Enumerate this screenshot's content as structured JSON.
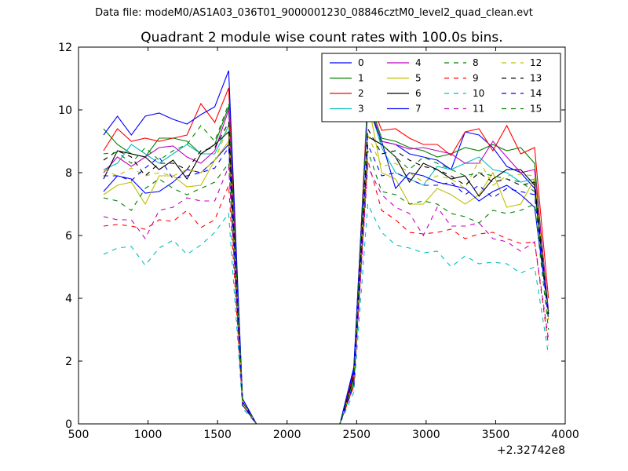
{
  "figure": {
    "suptitle": "Data file: modeM0/AS1A03_036T01_9000001230_08846cztM0_level2_quad_clean.evt"
  },
  "chart_data": {
    "type": "line",
    "title": "Quadrant 2 module wise count rates with 100.0s bins.",
    "xlabel": "",
    "ylabel": "",
    "x_offset_label": "+2.32742e8",
    "xlim": [
      500,
      4000
    ],
    "ylim": [
      0,
      12
    ],
    "xticks": [
      500,
      1000,
      1500,
      2000,
      2500,
      3000,
      3500,
      4000
    ],
    "yticks": [
      0,
      2,
      4,
      6,
      8,
      10,
      12
    ],
    "grid": false,
    "legend_position": "top-right",
    "legend_columns": 4,
    "x": [
      680,
      780,
      880,
      980,
      1080,
      1180,
      1280,
      1380,
      1480,
      1580,
      1680,
      1780,
      1880,
      1980,
      2080,
      2180,
      2280,
      2380,
      2480,
      2580,
      2680,
      2780,
      2880,
      2980,
      3080,
      3180,
      3280,
      3380,
      3480,
      3580,
      3680,
      3780,
      3880
    ],
    "series": [
      {
        "name": "0",
        "color": "#0000ff",
        "dash": "solid",
        "values": [
          7.4,
          7.9,
          7.8,
          7.35,
          7.4,
          7.7,
          8.1,
          8.0,
          8.4,
          8.9,
          0.8,
          0,
          0,
          0,
          0,
          0,
          0,
          0,
          1.7,
          10.2,
          9.0,
          8.9,
          8.6,
          8.5,
          8.4,
          8.1,
          9.3,
          9.2,
          8.8,
          8.2,
          8.0,
          7.5,
          3.4
        ]
      },
      {
        "name": "1",
        "color": "#008000",
        "dash": "solid",
        "values": [
          9.4,
          8.9,
          8.6,
          8.5,
          9.1,
          9.1,
          9.0,
          8.6,
          8.9,
          10.1,
          0.7,
          0,
          0,
          0,
          0,
          0,
          0,
          0,
          1.5,
          10.4,
          9.1,
          9.0,
          8.8,
          8.7,
          8.5,
          8.6,
          8.8,
          8.7,
          8.9,
          8.7,
          8.8,
          8.3,
          3.5
        ]
      },
      {
        "name": "2",
        "color": "#ff0000",
        "dash": "solid",
        "values": [
          8.7,
          9.4,
          9.0,
          9.1,
          9.0,
          9.1,
          9.2,
          10.2,
          9.6,
          10.7,
          0.7,
          0,
          0,
          0,
          0,
          0,
          0,
          0,
          1.6,
          10.5,
          9.35,
          9.4,
          9.1,
          8.9,
          8.9,
          8.55,
          9.3,
          9.4,
          8.7,
          9.5,
          8.6,
          8.8,
          4.0
        ]
      },
      {
        "name": "3",
        "color": "#00bfbf",
        "dash": "solid",
        "values": [
          8.1,
          8.3,
          8.9,
          8.6,
          8.3,
          8.6,
          8.9,
          8.6,
          8.6,
          9.5,
          0.7,
          0,
          0,
          0,
          0,
          0,
          0,
          0,
          1.4,
          10.3,
          8.8,
          8.0,
          7.8,
          7.6,
          8.2,
          8.1,
          8.3,
          8.5,
          8.1,
          8.0,
          7.7,
          7.8,
          3.4
        ]
      },
      {
        "name": "4",
        "color": "#bf00bf",
        "dash": "solid",
        "values": [
          8.0,
          8.5,
          8.2,
          8.5,
          8.8,
          8.85,
          8.5,
          8.3,
          8.7,
          10.0,
          0.7,
          0,
          0,
          0,
          0,
          0,
          0,
          0,
          1.5,
          10.3,
          9.0,
          8.9,
          8.75,
          8.8,
          8.7,
          8.6,
          8.3,
          8.3,
          9.0,
          8.5,
          8.0,
          8.1,
          3.6
        ]
      },
      {
        "name": "5",
        "color": "#bfbf00",
        "dash": "solid",
        "values": [
          7.3,
          7.6,
          7.7,
          7.0,
          7.9,
          7.9,
          7.55,
          7.6,
          8.4,
          9.0,
          0.6,
          0,
          0,
          0,
          0,
          0,
          0,
          0,
          1.3,
          10.3,
          8.0,
          7.8,
          7.0,
          7.0,
          7.5,
          7.3,
          7.0,
          7.3,
          8.0,
          6.9,
          7.0,
          7.8,
          3.3
        ]
      },
      {
        "name": "6",
        "color": "#000000",
        "dash": "solid",
        "values": [
          7.8,
          8.7,
          8.6,
          8.5,
          8.1,
          8.4,
          7.8,
          8.6,
          8.9,
          9.3,
          0.7,
          0,
          0,
          0,
          0,
          0,
          0,
          0,
          1.5,
          9.15,
          8.9,
          8.5,
          7.7,
          8.3,
          8.1,
          7.8,
          7.9,
          7.25,
          7.8,
          8.1,
          8.1,
          7.6,
          3.5
        ]
      },
      {
        "name": "7",
        "color": "#0000ff",
        "dash": "solid",
        "values": [
          9.2,
          9.8,
          9.2,
          9.8,
          9.9,
          9.7,
          9.55,
          9.85,
          10.1,
          11.25,
          0.8,
          0,
          0,
          0,
          0,
          0,
          0,
          0,
          1.8,
          10.1,
          9.0,
          7.5,
          8.0,
          7.9,
          7.7,
          7.6,
          7.5,
          7.1,
          7.4,
          7.6,
          7.3,
          6.9,
          3.5
        ]
      },
      {
        "name": "8",
        "color": "#008000",
        "dash": "dashed",
        "values": [
          7.2,
          7.1,
          6.8,
          7.5,
          7.8,
          7.5,
          7.3,
          7.5,
          7.7,
          8.3,
          0.6,
          0,
          0,
          0,
          0,
          0,
          0,
          0,
          1.3,
          8.7,
          7.4,
          7.3,
          7.0,
          7.1,
          7.0,
          6.7,
          6.6,
          6.4,
          6.8,
          6.7,
          6.8,
          7.0,
          3.0
        ]
      },
      {
        "name": "9",
        "color": "#ff0000",
        "dash": "dashed",
        "values": [
          6.3,
          6.35,
          6.3,
          6.2,
          6.5,
          6.45,
          6.8,
          6.25,
          6.5,
          7.6,
          0.6,
          0,
          0,
          0,
          0,
          0,
          0,
          0,
          1.2,
          8.4,
          6.8,
          6.5,
          6.1,
          6.05,
          6.1,
          6.2,
          5.9,
          6.05,
          6.1,
          5.9,
          5.75,
          5.8,
          2.5
        ]
      },
      {
        "name": "10",
        "color": "#00bfbf",
        "dash": "dashed",
        "values": [
          5.4,
          5.6,
          5.65,
          5.05,
          5.6,
          5.85,
          5.4,
          5.7,
          6.1,
          6.7,
          0.5,
          0,
          0,
          0,
          0,
          0,
          0,
          0,
          1.0,
          7.0,
          6.1,
          5.7,
          5.6,
          5.45,
          5.5,
          5.0,
          5.35,
          5.1,
          5.15,
          5.1,
          4.8,
          5.0,
          2.2
        ]
      },
      {
        "name": "11",
        "color": "#bf00bf",
        "dash": "dashed",
        "values": [
          6.6,
          6.5,
          6.5,
          5.9,
          6.8,
          6.9,
          7.2,
          7.1,
          7.1,
          8.2,
          0.6,
          0,
          0,
          0,
          0,
          0,
          0,
          0,
          1.2,
          8.2,
          7.3,
          6.9,
          6.7,
          6.0,
          6.9,
          6.3,
          6.3,
          6.4,
          5.9,
          5.8,
          5.5,
          5.8,
          2.7
        ]
      },
      {
        "name": "12",
        "color": "#bfbf00",
        "dash": "dashed",
        "values": [
          8.1,
          7.9,
          8.15,
          7.9,
          8.0,
          7.9,
          8.1,
          8.0,
          8.4,
          9.5,
          0.7,
          0,
          0,
          0,
          0,
          0,
          0,
          0,
          1.4,
          9.2,
          8.2,
          8.3,
          8.0,
          7.7,
          7.9,
          7.8,
          7.5,
          8.4,
          7.6,
          7.9,
          7.95,
          7.9,
          3.4
        ]
      },
      {
        "name": "13",
        "color": "#000000",
        "dash": "dashed",
        "values": [
          8.4,
          8.7,
          8.5,
          7.9,
          8.3,
          8.3,
          8.1,
          8.7,
          8.8,
          9.6,
          0.7,
          0,
          0,
          0,
          0,
          0,
          0,
          0,
          1.5,
          9.4,
          8.6,
          8.7,
          8.4,
          8.2,
          8.1,
          7.9,
          7.6,
          8.0,
          7.7,
          7.8,
          7.6,
          7.7,
          3.5
        ]
      },
      {
        "name": "14",
        "color": "#0000ff",
        "dash": "dashed",
        "values": [
          7.9,
          7.9,
          7.75,
          8.15,
          8.5,
          7.8,
          7.9,
          8.0,
          8.15,
          8.8,
          0.6,
          0,
          0,
          0,
          0,
          0,
          0,
          0,
          1.3,
          8.9,
          7.9,
          8.0,
          7.8,
          7.6,
          7.6,
          7.7,
          7.3,
          7.6,
          7.2,
          7.5,
          7.4,
          7.3,
          3.3
        ]
      },
      {
        "name": "15",
        "color": "#008000",
        "dash": "dashed",
        "values": [
          8.6,
          8.65,
          8.3,
          8.8,
          8.4,
          8.7,
          8.9,
          9.5,
          9.0,
          10.2,
          0.7,
          0,
          0,
          0,
          0,
          0,
          0,
          0,
          1.4,
          10.3,
          8.9,
          8.5,
          8.1,
          8.5,
          8.3,
          8.1,
          7.9,
          8.0,
          7.9,
          7.8,
          7.7,
          7.4,
          3.6
        ]
      }
    ]
  }
}
